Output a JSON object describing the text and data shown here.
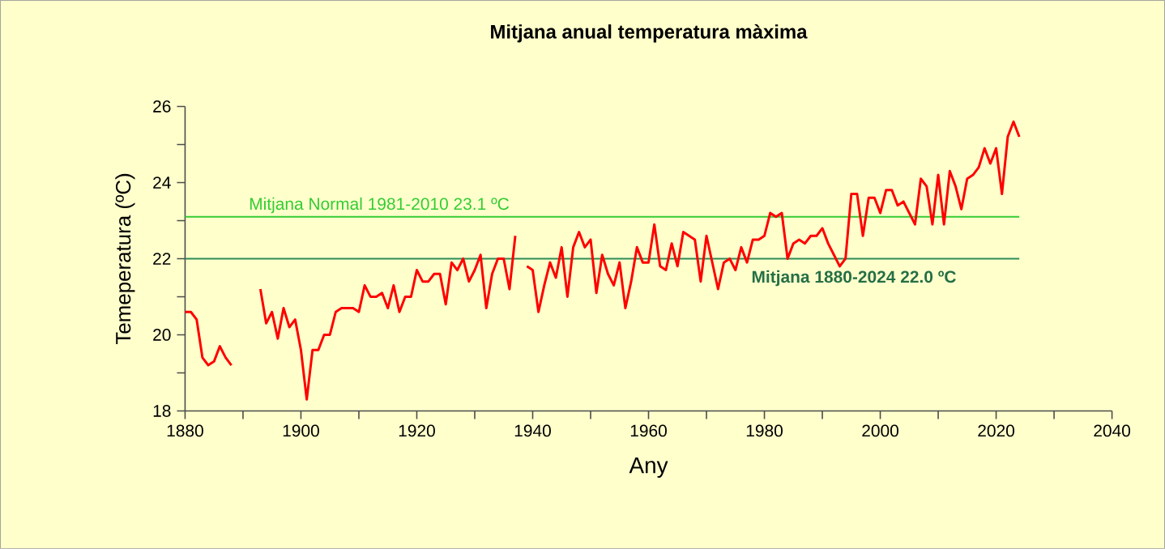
{
  "chart_data": {
    "type": "line",
    "title": "Mitjana anual temperatura màxima",
    "xlabel": "Any",
    "ylabel": "Temeperatura (ºC)",
    "x": [
      1880,
      1881,
      1882,
      1883,
      1884,
      1885,
      1886,
      1887,
      1888,
      1889,
      1890,
      1891,
      1892,
      1893,
      1894,
      1895,
      1896,
      1897,
      1898,
      1899,
      1900,
      1901,
      1902,
      1903,
      1904,
      1905,
      1906,
      1907,
      1908,
      1909,
      1910,
      1911,
      1912,
      1913,
      1914,
      1915,
      1916,
      1917,
      1918,
      1919,
      1920,
      1921,
      1922,
      1923,
      1924,
      1925,
      1926,
      1927,
      1928,
      1929,
      1930,
      1931,
      1932,
      1933,
      1934,
      1935,
      1936,
      1937,
      1938,
      1939,
      1940,
      1941,
      1942,
      1943,
      1944,
      1945,
      1946,
      1947,
      1948,
      1949,
      1950,
      1951,
      1952,
      1953,
      1954,
      1955,
      1956,
      1957,
      1958,
      1959,
      1960,
      1961,
      1962,
      1963,
      1964,
      1965,
      1966,
      1967,
      1968,
      1969,
      1970,
      1971,
      1972,
      1973,
      1974,
      1975,
      1976,
      1977,
      1978,
      1979,
      1980,
      1981,
      1982,
      1983,
      1984,
      1985,
      1986,
      1987,
      1988,
      1989,
      1990,
      1991,
      1992,
      1993,
      1994,
      1995,
      1996,
      1997,
      1998,
      1999,
      2000,
      2001,
      2002,
      2003,
      2004,
      2005,
      2006,
      2007,
      2008,
      2009,
      2010,
      2011,
      2012,
      2013,
      2014,
      2015,
      2016,
      2017,
      2018,
      2019,
      2020,
      2021,
      2022,
      2023,
      2024
    ],
    "series": [
      {
        "color": "#ff0000",
        "values": [
          20.6,
          20.6,
          20.4,
          19.4,
          19.2,
          19.3,
          19.7,
          19.4,
          19.2,
          null,
          null,
          null,
          null,
          21.2,
          20.3,
          20.6,
          19.9,
          20.7,
          20.2,
          20.4,
          19.6,
          18.3,
          19.6,
          19.6,
          20.0,
          20.0,
          20.6,
          20.7,
          20.7,
          20.7,
          20.6,
          21.3,
          21.0,
          21.0,
          21.1,
          20.7,
          21.3,
          20.6,
          21.0,
          21.0,
          21.7,
          21.4,
          21.4,
          21.6,
          21.6,
          20.8,
          21.9,
          21.7,
          22.0,
          21.4,
          21.7,
          22.1,
          20.7,
          21.6,
          22.0,
          22.0,
          21.2,
          22.6,
          null,
          21.8,
          21.7,
          20.6,
          21.3,
          21.9,
          21.5,
          22.3,
          21.0,
          22.3,
          22.7,
          22.3,
          22.5,
          21.1,
          22.1,
          21.6,
          21.3,
          21.9,
          20.7,
          21.4,
          22.3,
          21.9,
          21.9,
          22.9,
          21.8,
          21.7,
          22.4,
          21.8,
          22.7,
          22.6,
          22.5,
          21.4,
          22.6,
          21.9,
          21.2,
          21.9,
          22.0,
          21.7,
          22.3,
          21.9,
          22.5,
          22.5,
          22.6,
          23.2,
          23.1,
          23.2,
          22.0,
          22.4,
          22.5,
          22.4,
          22.6,
          22.6,
          22.8,
          22.4,
          22.1,
          21.8,
          22.0,
          23.7,
          23.7,
          22.6,
          23.6,
          23.6,
          23.2,
          23.8,
          23.8,
          23.4,
          23.5,
          23.2,
          22.9,
          24.1,
          23.9,
          22.9,
          24.2,
          22.9,
          24.3,
          23.9,
          23.3,
          24.1,
          24.2,
          24.4,
          24.9,
          24.5,
          24.9,
          23.7,
          25.2,
          25.6,
          25.2
        ]
      }
    ],
    "xlim": [
      1880,
      2040
    ],
    "xticks": [
      1880,
      1900,
      1920,
      1940,
      1960,
      1980,
      2000,
      2020,
      2040
    ],
    "ylim": [
      18,
      26
    ],
    "yticks": [
      18,
      20,
      22,
      24,
      26
    ],
    "grid": false,
    "ref_lines": [
      {
        "axis": "y",
        "value": 23.1,
        "label": "Mitjana Normal 1981-2010 23.1 ºC",
        "color": "#33cc33"
      },
      {
        "axis": "y",
        "value": 22.0,
        "label": "**Mitjana 1880-2024  22.0 ºC**",
        "color": "#2e8b57"
      }
    ]
  }
}
